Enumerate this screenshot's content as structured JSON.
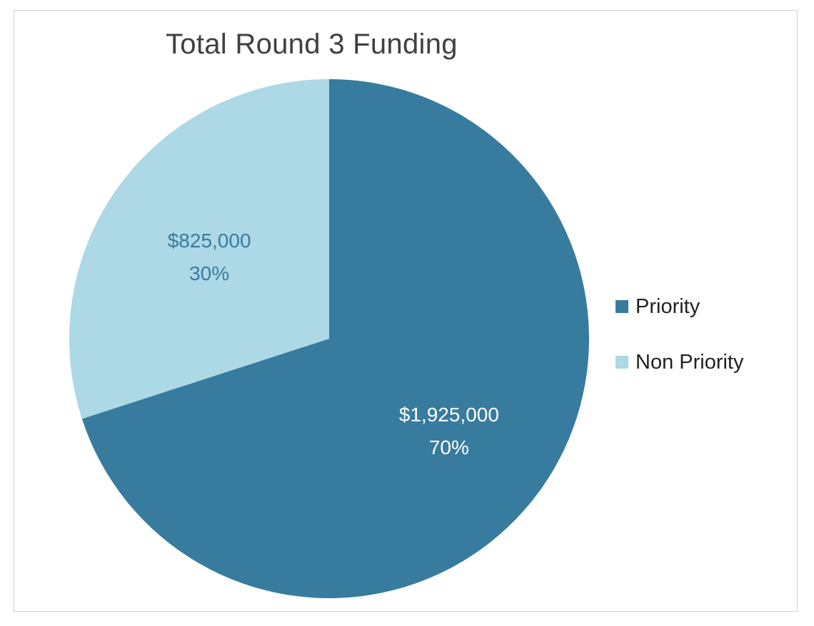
{
  "chart_data": {
    "type": "pie",
    "title": "Total Round 3 Funding",
    "start_angle_deg": 0,
    "direction": "clockwise",
    "series": [
      {
        "name": "Priority",
        "value": 1925000,
        "value_label": "$1,925,000",
        "percent_label": "70%",
        "percent": 70,
        "color": "#377c9f",
        "label_color": "#ffffff"
      },
      {
        "name": "Non Priority",
        "value": 825000,
        "value_label": "$825,000",
        "percent_label": "30%",
        "percent": 30,
        "color": "#add8e5",
        "label_color": "#377c9f"
      }
    ],
    "legend_position": "right"
  }
}
